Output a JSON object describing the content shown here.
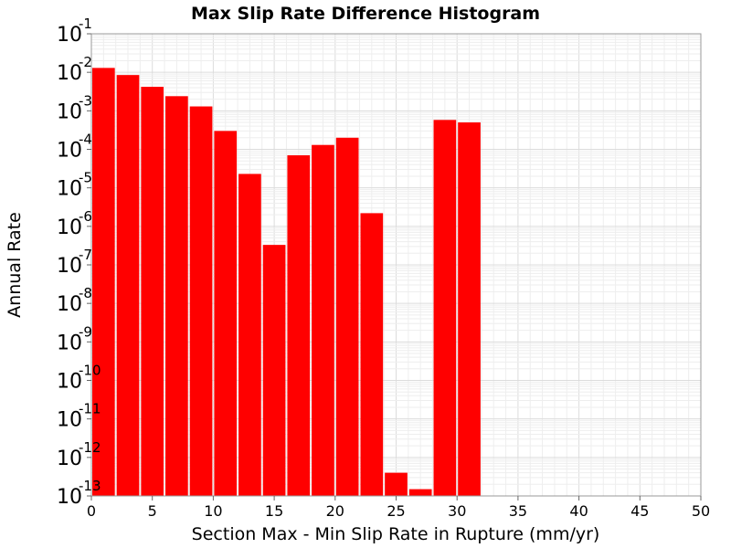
{
  "chart_data": {
    "type": "bar",
    "title": "Max Slip Rate Difference Histogram",
    "xlabel": "Section Max - Min Slip Rate in Rupture (mm/yr)",
    "ylabel": "Annual Rate",
    "xlim": [
      0,
      50
    ],
    "ylim": [
      1e-13,
      0.1
    ],
    "yscale": "log",
    "bin_width": 2,
    "grid": true,
    "bar_color": "#ff0000",
    "x_ticks": [
      "0",
      "5",
      "10",
      "15",
      "20",
      "25",
      "30",
      "35",
      "40",
      "45",
      "50"
    ],
    "y_ticks": [
      {
        "base": "10",
        "exp": "-1"
      },
      {
        "base": "10",
        "exp": "-2"
      },
      {
        "base": "10",
        "exp": "-3"
      },
      {
        "base": "10",
        "exp": "-4"
      },
      {
        "base": "10",
        "exp": "-5"
      },
      {
        "base": "10",
        "exp": "-6"
      },
      {
        "base": "10",
        "exp": "-7"
      },
      {
        "base": "10",
        "exp": "-8"
      },
      {
        "base": "10",
        "exp": "-9"
      },
      {
        "base": "10",
        "exp": "-10"
      },
      {
        "base": "10",
        "exp": "-11"
      },
      {
        "base": "10",
        "exp": "-12"
      },
      {
        "base": "10",
        "exp": "-13"
      }
    ],
    "bars": [
      {
        "x": 1,
        "value": 0.013
      },
      {
        "x": 3,
        "value": 0.0085
      },
      {
        "x": 5,
        "value": 0.0042
      },
      {
        "x": 7,
        "value": 0.0024
      },
      {
        "x": 9,
        "value": 0.0013
      },
      {
        "x": 11,
        "value": 0.0003
      },
      {
        "x": 13,
        "value": 2.3e-05
      },
      {
        "x": 15,
        "value": 3.3e-07
      },
      {
        "x": 17,
        "value": 7e-05
      },
      {
        "x": 19,
        "value": 0.00013
      },
      {
        "x": 21,
        "value": 0.0002
      },
      {
        "x": 23,
        "value": 2.2e-06
      },
      {
        "x": 25,
        "value": 4e-13
      },
      {
        "x": 27,
        "value": 1.5e-13
      },
      {
        "x": 29,
        "value": 0.00058
      },
      {
        "x": 31,
        "value": 0.0005
      }
    ]
  }
}
